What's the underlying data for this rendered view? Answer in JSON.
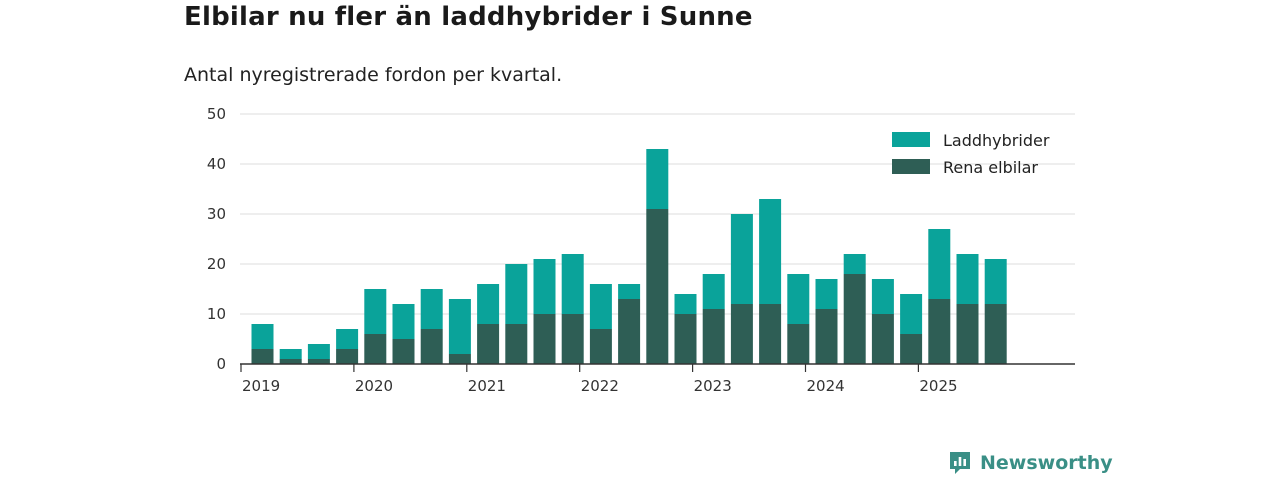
{
  "title": "Elbilar nu fler än laddhybrider i Sunne",
  "subtitle": "Antal nyregistrerade fordon per kvartal.",
  "brand": {
    "name": "Newsworthy",
    "icon": "newsworthy-logo-icon"
  },
  "colors": {
    "hybrid": "#0aa39a",
    "electric": "#2e5e55",
    "grid": "#dddddd",
    "axis": "#333333",
    "brand": "#3a8f86"
  },
  "chart_data": {
    "type": "bar",
    "stacked": true,
    "categories": [
      "2019 Q2",
      "2019 Q3",
      "2019 Q4",
      "2020 Q1",
      "2020 Q2",
      "2020 Q3",
      "2020 Q4",
      "2021 Q1",
      "2021 Q2",
      "2021 Q3",
      "2021 Q4",
      "2022 Q1",
      "2022 Q2",
      "2022 Q3",
      "2022 Q4",
      "2023 Q1",
      "2023 Q2",
      "2023 Q3",
      "2023 Q4",
      "2024 Q1",
      "2024 Q2",
      "2024 Q3",
      "2024 Q4",
      "2025 Q1",
      "2025 Q2",
      "2025 Q3",
      "2025 Q4"
    ],
    "series": [
      {
        "name": "Rena elbilar",
        "values": [
          3,
          1,
          1,
          3,
          6,
          5,
          7,
          2,
          8,
          8,
          10,
          10,
          7,
          13,
          31,
          10,
          11,
          12,
          12,
          8,
          11,
          18,
          10,
          6,
          13,
          12,
          12
        ]
      },
      {
        "name": "Laddhybrider",
        "values": [
          5,
          2,
          3,
          4,
          9,
          7,
          8,
          11,
          8,
          12,
          11,
          12,
          9,
          3,
          12,
          4,
          7,
          18,
          21,
          10,
          6,
          4,
          7,
          8,
          14,
          10,
          9
        ]
      }
    ],
    "x_tick_labels": [
      "2019",
      "2020",
      "2021",
      "2022",
      "2023",
      "2024",
      "2025"
    ],
    "y_ticks": [
      0,
      10,
      20,
      30,
      40,
      50
    ],
    "ylim": [
      0,
      50
    ],
    "grid": true,
    "legend": "top-right"
  }
}
